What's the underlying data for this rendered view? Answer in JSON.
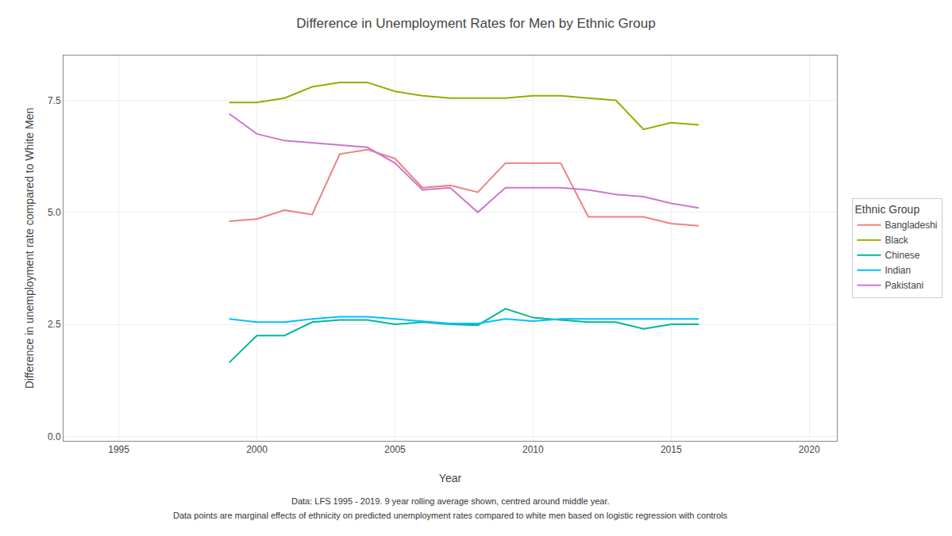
{
  "chart_data": {
    "type": "line",
    "title": "Difference in Unemployment Rates for Men by Ethnic Group",
    "xlabel": "Year",
    "ylabel": "Difference in unemployment rate compared to White Men",
    "legend_title": "Ethnic Group",
    "annotations": [
      "Data: LFS 1995 - 2019. 9 year rolling average shown, centred around middle year.",
      "Data points are marginal effects of ethnicity on predicted unemployment rates compared to white men based on logistic regression with controls"
    ],
    "x": [
      1999,
      2000,
      2001,
      2002,
      2003,
      2004,
      2005,
      2006,
      2007,
      2008,
      2009,
      2010,
      2011,
      2012,
      2013,
      2014,
      2015,
      2016
    ],
    "series": [
      {
        "name": "Bangladeshi",
        "color": "#F08080",
        "values": [
          4.8,
          4.85,
          5.05,
          4.95,
          6.3,
          6.4,
          6.2,
          5.55,
          5.6,
          5.45,
          6.1,
          6.1,
          6.1,
          4.9,
          4.9,
          4.9,
          4.75,
          4.7
        ]
      },
      {
        "name": "Black",
        "color": "#9aaa00",
        "values": [
          7.45,
          7.45,
          7.55,
          7.8,
          7.9,
          7.9,
          7.7,
          7.6,
          7.55,
          7.55,
          7.55,
          7.6,
          7.6,
          7.55,
          7.5,
          6.85,
          7.0,
          6.95
        ]
      },
      {
        "name": "Chinese",
        "color": "#00b896",
        "values": [
          1.65,
          2.25,
          2.25,
          2.55,
          2.6,
          2.6,
          2.5,
          2.55,
          2.5,
          2.48,
          2.85,
          2.65,
          2.6,
          2.55,
          2.55,
          2.4,
          2.5,
          2.5
        ]
      },
      {
        "name": "Indian",
        "color": "#00BFFF",
        "values": [
          2.62,
          2.55,
          2.55,
          2.62,
          2.67,
          2.67,
          2.62,
          2.57,
          2.52,
          2.52,
          2.62,
          2.57,
          2.62,
          2.62,
          2.62,
          2.62,
          2.62,
          2.62
        ]
      },
      {
        "name": "Pakistani",
        "color": "#cc77cc",
        "values": [
          7.2,
          6.75,
          6.6,
          6.55,
          6.5,
          6.45,
          6.1,
          5.5,
          5.55,
          5.0,
          5.55,
          5.55,
          5.55,
          5.5,
          5.4,
          5.35,
          5.2,
          5.1
        ]
      }
    ],
    "xlim": [
      1993,
      2021
    ],
    "xticks": [
      1995,
      2000,
      2005,
      2010,
      2015,
      2020
    ],
    "ylim": [
      -0.1,
      8.5
    ],
    "yticks": [
      {
        "value": 0.0,
        "label": "0.0"
      },
      2.5,
      {
        "value": 5.0,
        "label": "5.0"
      },
      7.5
    ],
    "grid": true,
    "legend": "right"
  }
}
